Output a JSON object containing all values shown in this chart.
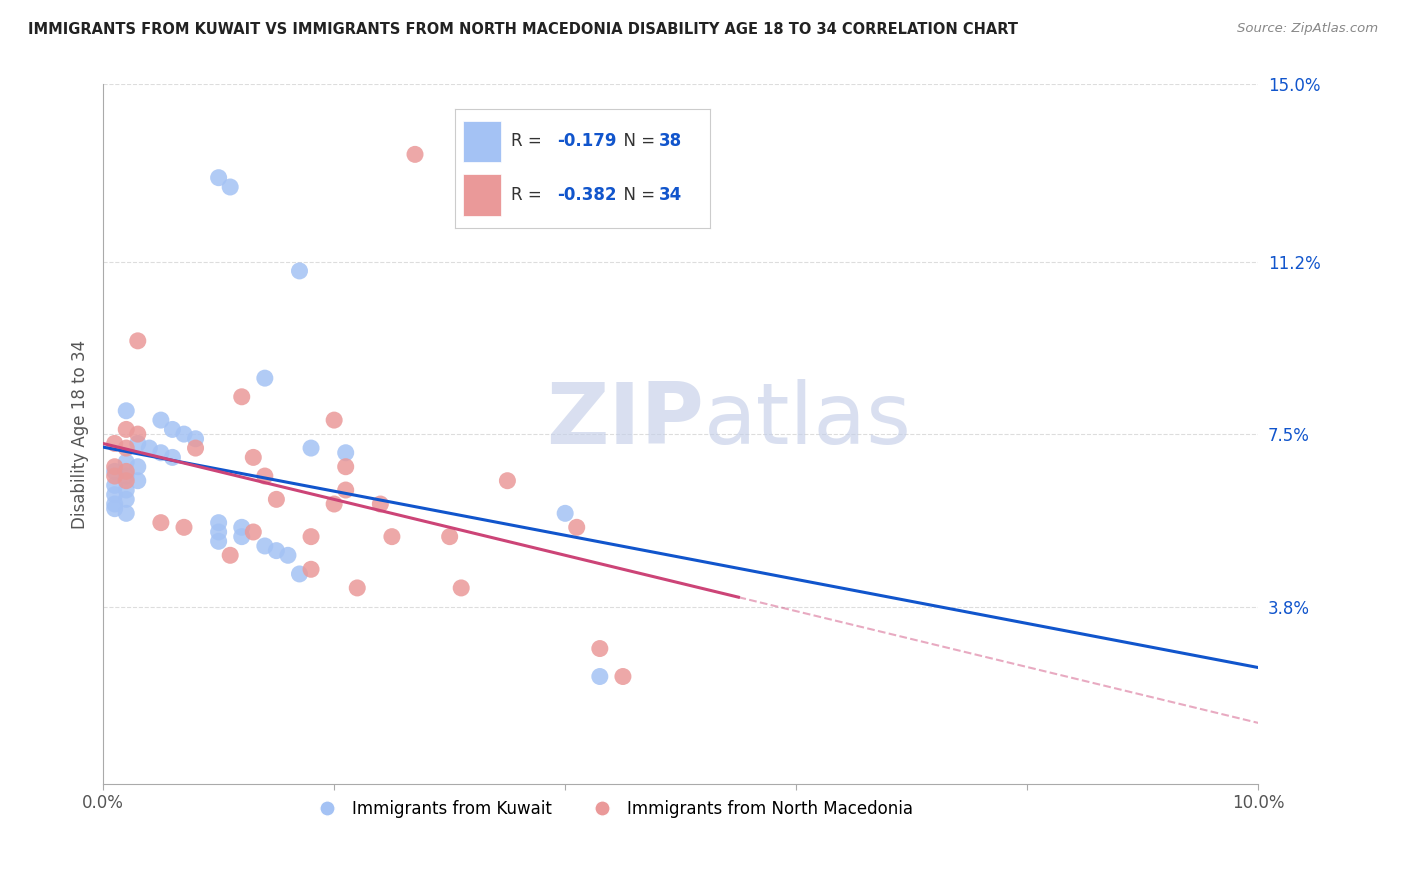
{
  "title": "IMMIGRANTS FROM KUWAIT VS IMMIGRANTS FROM NORTH MACEDONIA DISABILITY AGE 18 TO 34 CORRELATION CHART",
  "source": "Source: ZipAtlas.com",
  "ylabel": "Disability Age 18 to 34",
  "xlim": [
    0.0,
    0.1
  ],
  "ylim": [
    0.0,
    0.15
  ],
  "ytick_right_labels": [
    "15.0%",
    "11.2%",
    "7.5%",
    "3.8%"
  ],
  "ytick_right_values": [
    0.15,
    0.112,
    0.075,
    0.038
  ],
  "blue_R": "-0.179",
  "blue_N": "38",
  "pink_R": "-0.382",
  "pink_N": "34",
  "blue_label": "Immigrants from Kuwait",
  "pink_label": "Immigrants from North Macedonia",
  "blue_color": "#a4c2f4",
  "pink_color": "#ea9999",
  "blue_line_color": "#1155cc",
  "pink_line_color": "#cc4477",
  "legend_text_color": "#1155cc",
  "blue_scatter": [
    [
      0.01,
      0.13
    ],
    [
      0.011,
      0.128
    ],
    [
      0.017,
      0.11
    ],
    [
      0.014,
      0.087
    ],
    [
      0.002,
      0.08
    ],
    [
      0.005,
      0.078
    ],
    [
      0.006,
      0.076
    ],
    [
      0.007,
      0.075
    ],
    [
      0.008,
      0.074
    ],
    [
      0.003,
      0.073
    ],
    [
      0.004,
      0.072
    ],
    [
      0.005,
      0.071
    ],
    [
      0.006,
      0.07
    ],
    [
      0.002,
      0.069
    ],
    [
      0.003,
      0.068
    ],
    [
      0.001,
      0.067
    ],
    [
      0.002,
      0.066
    ],
    [
      0.003,
      0.065
    ],
    [
      0.001,
      0.064
    ],
    [
      0.002,
      0.063
    ],
    [
      0.001,
      0.062
    ],
    [
      0.002,
      0.061
    ],
    [
      0.001,
      0.06
    ],
    [
      0.001,
      0.059
    ],
    [
      0.002,
      0.058
    ],
    [
      0.018,
      0.072
    ],
    [
      0.021,
      0.071
    ],
    [
      0.01,
      0.056
    ],
    [
      0.012,
      0.055
    ],
    [
      0.01,
      0.054
    ],
    [
      0.012,
      0.053
    ],
    [
      0.01,
      0.052
    ],
    [
      0.014,
      0.051
    ],
    [
      0.015,
      0.05
    ],
    [
      0.016,
      0.049
    ],
    [
      0.04,
      0.058
    ],
    [
      0.017,
      0.045
    ],
    [
      0.043,
      0.023
    ]
  ],
  "pink_scatter": [
    [
      0.027,
      0.135
    ],
    [
      0.003,
      0.095
    ],
    [
      0.012,
      0.083
    ],
    [
      0.02,
      0.078
    ],
    [
      0.002,
      0.076
    ],
    [
      0.003,
      0.075
    ],
    [
      0.001,
      0.073
    ],
    [
      0.002,
      0.072
    ],
    [
      0.008,
      0.072
    ],
    [
      0.013,
      0.07
    ],
    [
      0.001,
      0.068
    ],
    [
      0.002,
      0.067
    ],
    [
      0.001,
      0.066
    ],
    [
      0.002,
      0.065
    ],
    [
      0.014,
      0.066
    ],
    [
      0.021,
      0.068
    ],
    [
      0.021,
      0.063
    ],
    [
      0.015,
      0.061
    ],
    [
      0.02,
      0.06
    ],
    [
      0.024,
      0.06
    ],
    [
      0.035,
      0.065
    ],
    [
      0.005,
      0.056
    ],
    [
      0.007,
      0.055
    ],
    [
      0.013,
      0.054
    ],
    [
      0.018,
      0.053
    ],
    [
      0.025,
      0.053
    ],
    [
      0.03,
      0.053
    ],
    [
      0.011,
      0.049
    ],
    [
      0.018,
      0.046
    ],
    [
      0.022,
      0.042
    ],
    [
      0.031,
      0.042
    ],
    [
      0.041,
      0.055
    ],
    [
      0.043,
      0.029
    ],
    [
      0.045,
      0.023
    ]
  ],
  "watermark_zip": "ZIP",
  "watermark_atlas": "atlas",
  "background_color": "#ffffff",
  "grid_color": "#dddddd"
}
